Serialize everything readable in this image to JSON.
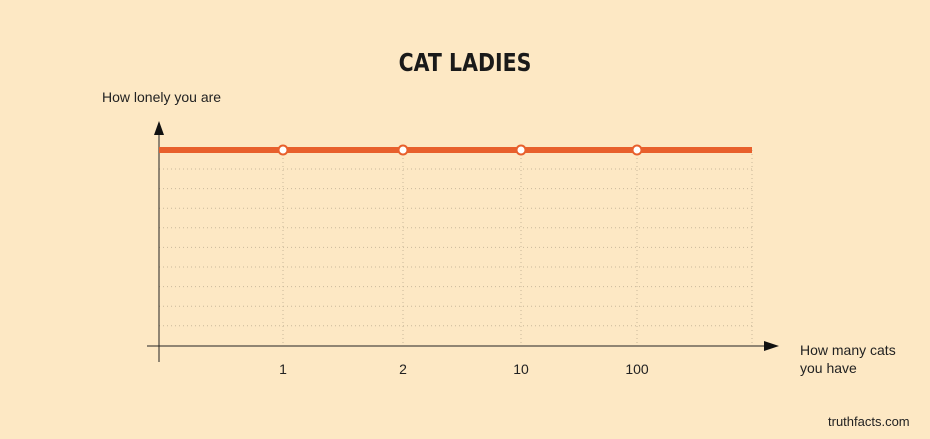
{
  "chart_data": {
    "type": "line",
    "title": "CAT LADIES",
    "xlabel": "How many cats you have",
    "ylabel": "How lonely you are",
    "categories": [
      "1",
      "2",
      "10",
      "100"
    ],
    "series": [
      {
        "values": [
          1,
          1,
          1,
          1
        ]
      }
    ],
    "ylim": [
      0,
      1
    ],
    "grid": true,
    "line_color": "#e8602c",
    "background": "#fde8c4"
  },
  "credit": "truthfacts.com"
}
